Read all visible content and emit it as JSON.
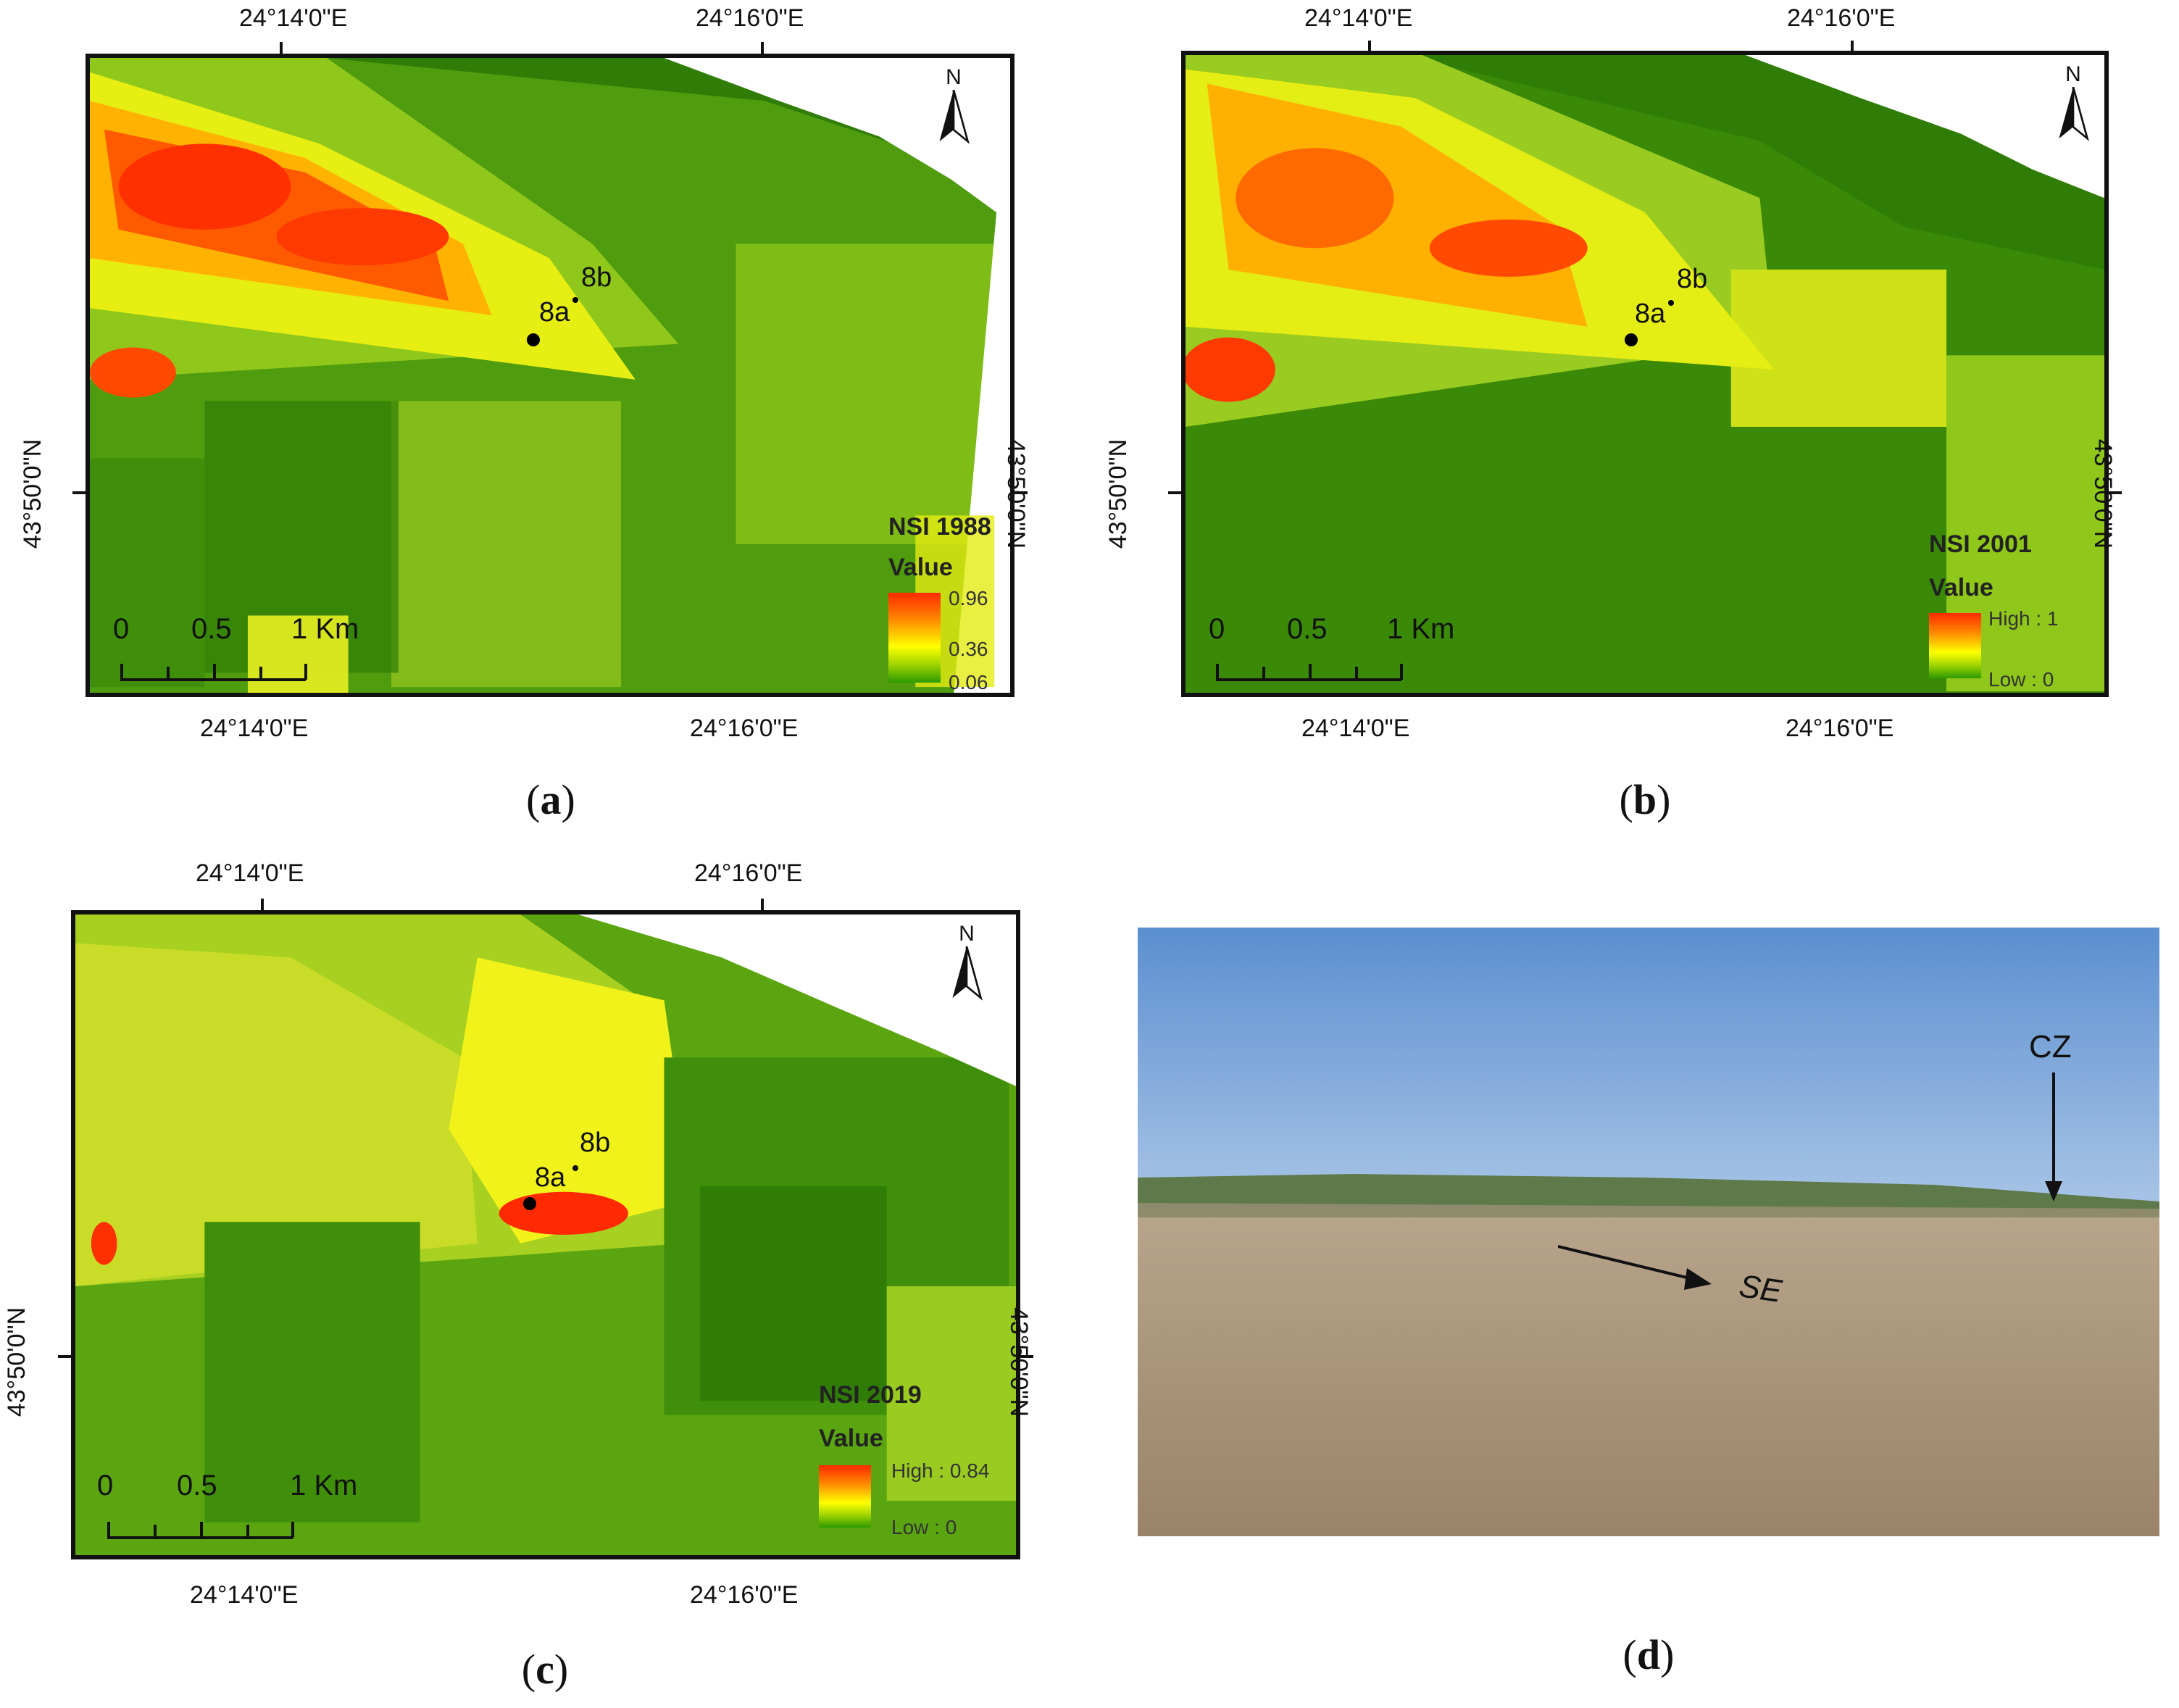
{
  "panels": [
    {
      "id": "a",
      "caption": "a",
      "top_labels": [
        "24°14'0\"E",
        "24°16'0\"E"
      ],
      "bottom_labels": [
        "24°14'0\"E",
        "24°16'0\"E"
      ],
      "side_label": "43°50'0\"N",
      "legend_title": "NSI 1988",
      "legend_value_label": "Value",
      "legend_high": "0.96",
      "legend_mid": "0.36",
      "legend_low": "0.06",
      "site_a": "8a",
      "site_b": "8b",
      "north": "N"
    },
    {
      "id": "b",
      "caption": "b",
      "top_labels": [
        "24°14'0\"E",
        "24°16'0\"E"
      ],
      "bottom_labels": [
        "24°14'0\"E",
        "24°16'0\"E"
      ],
      "side_label": "43°50'0\"N",
      "legend_title": "NSI 2001",
      "legend_value_label": "Value",
      "legend_high": "High : 1",
      "legend_low": "Low : 0",
      "site_a": "8a",
      "site_b": "8b",
      "north": "N"
    },
    {
      "id": "c",
      "caption": "c",
      "top_labels": [
        "24°14'0\"E",
        "24°16'0\"E"
      ],
      "bottom_labels": [
        "24°14'0\"E",
        "24°16'0\"E"
      ],
      "side_label": "43°50'0\"N",
      "legend_title": "NSI 2019",
      "legend_value_label": "Value",
      "legend_high": "High : 0.84",
      "legend_low": "Low : 0",
      "site_a": "8a",
      "site_b": "8b",
      "north": "N"
    }
  ],
  "scale_bar": {
    "zero": "0",
    "half": "0.5",
    "one": "1 Km"
  },
  "photo": {
    "caption": "d",
    "label_cz": "CZ",
    "label_se": "SE"
  },
  "colors": {
    "red": "#ff2a00",
    "orange": "#ff8a00",
    "yellow": "#ffff00",
    "lightgreen": "#9fd400",
    "green": "#2e9a00",
    "darkgreen": "#1f6f00"
  }
}
